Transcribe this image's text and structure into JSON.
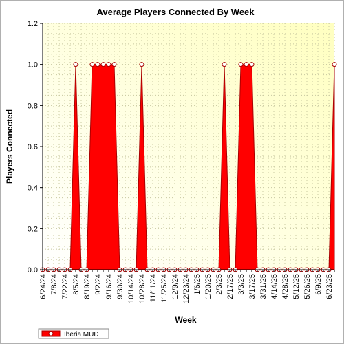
{
  "chart_data": {
    "type": "area",
    "title": "Average Players Connected By Week",
    "xlabel": "Week",
    "ylabel": "Players Connected",
    "ylim": [
      0,
      1.2
    ],
    "yticks": [
      "0.0",
      "0.2",
      "0.4",
      "0.6",
      "0.8",
      "1.0",
      "1.2"
    ],
    "x_tick_labels": [
      "6/24/24",
      "7/8/24",
      "7/22/24",
      "8/5/24",
      "8/19/24",
      "9/2/24",
      "9/16/24",
      "9/30/24",
      "10/14/24",
      "10/28/24",
      "11/11/24",
      "11/25/24",
      "12/9/24",
      "12/23/24",
      "1/6/25",
      "1/20/25",
      "2/3/25",
      "2/17/25",
      "3/3/25",
      "3/17/25",
      "3/31/25",
      "4/14/25",
      "4/28/25",
      "5/12/25",
      "5/26/25",
      "6/9/25",
      "6/23/25"
    ],
    "x": [
      "6/24/24",
      "7/1/24",
      "7/8/24",
      "7/15/24",
      "7/22/24",
      "7/29/24",
      "8/5/24",
      "8/12/24",
      "8/19/24",
      "8/26/24",
      "9/2/24",
      "9/9/24",
      "9/16/24",
      "9/23/24",
      "9/30/24",
      "10/7/24",
      "10/14/24",
      "10/21/24",
      "10/28/24",
      "11/4/24",
      "11/11/24",
      "11/18/24",
      "11/25/24",
      "12/2/24",
      "12/9/24",
      "12/16/24",
      "12/23/24",
      "12/30/24",
      "1/6/25",
      "1/13/25",
      "1/20/25",
      "1/27/25",
      "2/3/25",
      "2/10/25",
      "2/17/25",
      "2/24/25",
      "3/3/25",
      "3/10/25",
      "3/17/25",
      "3/24/25",
      "3/31/25",
      "4/7/25",
      "4/14/25",
      "4/21/25",
      "4/28/25",
      "5/5/25",
      "5/12/25",
      "5/19/25",
      "5/26/25",
      "6/2/25",
      "6/9/25",
      "6/16/25",
      "6/23/25",
      "6/30/25"
    ],
    "series": [
      {
        "name": "Iberia MUD",
        "color": "#ff0000",
        "values": [
          0,
          0,
          0,
          0,
          0,
          0,
          1,
          0,
          0,
          1,
          1,
          1,
          1,
          1,
          0,
          0,
          0,
          0,
          1,
          0,
          0,
          0,
          0,
          0,
          0,
          0,
          0,
          0,
          0,
          0,
          0,
          0,
          0,
          1,
          0,
          0,
          1,
          1,
          1,
          0,
          0,
          0,
          0,
          0,
          0,
          0,
          0,
          0,
          0,
          0,
          0,
          0,
          0,
          1
        ]
      }
    ],
    "grid": true,
    "legend_position": "bottom-left",
    "colors": {
      "fill": "#ff0000",
      "marker_edge": "#aa0000",
      "plot_bg_top": "#ffffc8",
      "plot_bg_bottom": "#ffffff"
    }
  }
}
